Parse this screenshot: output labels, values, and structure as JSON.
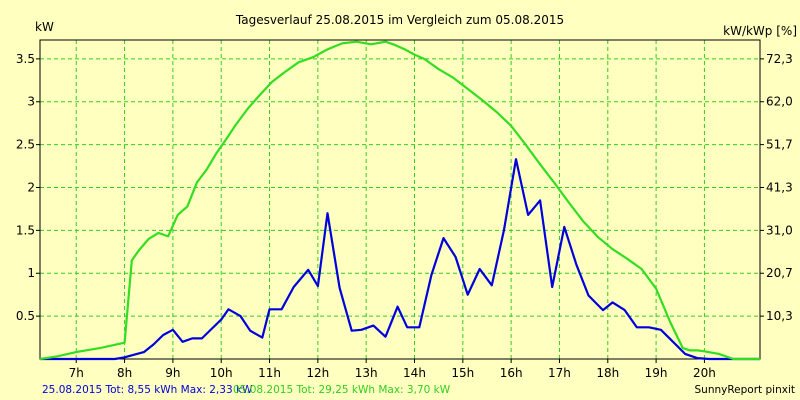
{
  "chart_data": {
    "type": "line",
    "title": "Tagesverlauf 25.08.2015 im Vergleich zum 05.08.2015",
    "ylabel": "kW",
    "y2label": "kW/kWp [%]",
    "xlabel": "",
    "xlim": [
      6.25,
      21.15
    ],
    "ylim": [
      0,
      3.72
    ],
    "grid": true,
    "x_ticks": [
      7,
      8,
      9,
      10,
      11,
      12,
      13,
      14,
      15,
      16,
      17,
      18,
      19,
      20
    ],
    "x_tick_labels": [
      "7h",
      "8h",
      "9h",
      "10h",
      "11h",
      "12h",
      "13h",
      "14h",
      "15h",
      "16h",
      "17h",
      "18h",
      "19h",
      "20h"
    ],
    "y_ticks": [
      0.5,
      1,
      1.5,
      2,
      2.5,
      3,
      3.5
    ],
    "y_tick_labels": [
      "0.5",
      "1",
      "1.5",
      "2",
      "2.5",
      "3",
      "3.5"
    ],
    "y2_ticks": [
      0.5,
      1,
      1.5,
      2,
      2.5,
      3,
      3.5
    ],
    "y2_tick_labels": [
      "10,3",
      "20,7",
      "31,0",
      "41,3",
      "51,7",
      "62,0",
      "72,3"
    ],
    "series": [
      {
        "name": "25.08.2015",
        "color": "#0000dd",
        "x": [
          6.25,
          7.8,
          8.0,
          8.4,
          8.6,
          8.8,
          9.0,
          9.2,
          9.4,
          9.6,
          9.8,
          10.0,
          10.15,
          10.4,
          10.6,
          10.85,
          11.0,
          11.25,
          11.5,
          11.8,
          12.0,
          12.2,
          12.45,
          12.7,
          12.9,
          13.15,
          13.4,
          13.65,
          13.85,
          14.1,
          14.35,
          14.6,
          14.85,
          15.1,
          15.35,
          15.6,
          15.85,
          16.1,
          16.35,
          16.6,
          16.85,
          17.1,
          17.35,
          17.6,
          17.9,
          18.1,
          18.35,
          18.6,
          18.85,
          19.1,
          19.35,
          19.6,
          19.85,
          20.1,
          20.4,
          21.15
        ],
        "values": [
          0,
          0,
          0.02,
          0.08,
          0.17,
          0.28,
          0.34,
          0.2,
          0.24,
          0.24,
          0.35,
          0.46,
          0.58,
          0.5,
          0.33,
          0.25,
          0.58,
          0.58,
          0.84,
          1.04,
          0.85,
          1.7,
          0.83,
          0.33,
          0.34,
          0.39,
          0.26,
          0.61,
          0.37,
          0.37,
          0.98,
          1.41,
          1.19,
          0.75,
          1.05,
          0.86,
          1.5,
          2.33,
          1.68,
          1.85,
          0.84,
          1.54,
          1.1,
          0.74,
          0.57,
          0.66,
          0.57,
          0.37,
          0.37,
          0.34,
          0.2,
          0.06,
          0.01,
          0.0,
          0.0,
          0.0
        ]
      },
      {
        "name": "05.08.2015",
        "color": "#33dd22",
        "x": [
          6.25,
          6.6,
          7.0,
          7.5,
          8.0,
          8.15,
          8.3,
          8.5,
          8.7,
          8.9,
          9.1,
          9.3,
          9.5,
          9.7,
          9.9,
          10.1,
          10.3,
          10.55,
          10.8,
          11.05,
          11.3,
          11.6,
          11.9,
          12.2,
          12.5,
          12.8,
          13.1,
          13.4,
          13.6,
          13.8,
          14.0,
          14.2,
          14.5,
          14.8,
          15.1,
          15.4,
          15.7,
          16.0,
          16.3,
          16.6,
          16.9,
          17.2,
          17.5,
          17.8,
          18.1,
          18.4,
          18.7,
          19.0,
          19.3,
          19.55,
          19.7,
          19.85,
          20.0,
          20.3,
          20.6,
          21.15
        ],
        "values": [
          0,
          0.03,
          0.08,
          0.13,
          0.19,
          1.15,
          1.27,
          1.4,
          1.47,
          1.43,
          1.68,
          1.78,
          2.06,
          2.21,
          2.4,
          2.56,
          2.73,
          2.92,
          3.08,
          3.23,
          3.34,
          3.46,
          3.52,
          3.61,
          3.68,
          3.7,
          3.67,
          3.7,
          3.66,
          3.61,
          3.55,
          3.5,
          3.38,
          3.28,
          3.15,
          3.02,
          2.88,
          2.72,
          2.5,
          2.27,
          2.05,
          1.82,
          1.6,
          1.42,
          1.28,
          1.17,
          1.05,
          0.82,
          0.42,
          0.13,
          0.1,
          0.1,
          0.09,
          0.06,
          0.0,
          0.0
        ]
      }
    ]
  },
  "legend": {
    "series1_text": "25.08.2015 Tot: 8,55 kWh Max: 2,33 kW",
    "series2_text": "05.08.2015 Tot: 29,25 kWh Max: 3,70 kW",
    "credit": "SunnyReport pinxit"
  }
}
